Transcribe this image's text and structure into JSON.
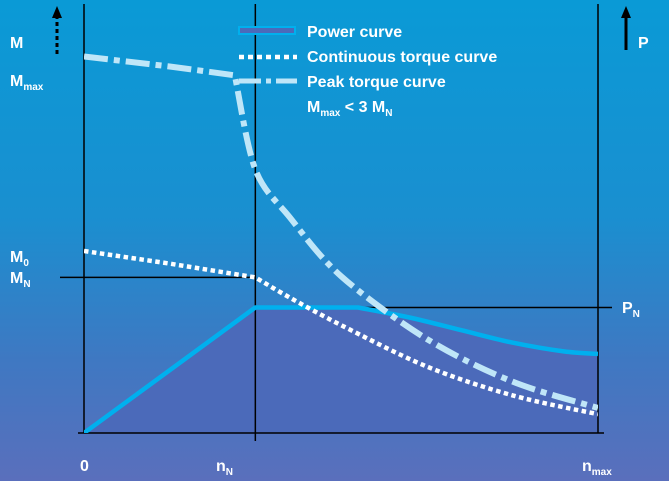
{
  "chart_data": {
    "type": "line",
    "x_ticks": {
      "zero": "0",
      "n_N": {
        "base": "n",
        "sub": "N"
      },
      "n_max": {
        "base": "n",
        "sub": "max"
      }
    },
    "y_left": {
      "axis_label": "M",
      "ticks": {
        "M_max": {
          "base": "M",
          "sub": "max"
        },
        "M_0": {
          "base": "M",
          "sub": "0"
        },
        "M_N": {
          "base": "M",
          "sub": "N"
        }
      }
    },
    "y_right": {
      "axis_label": "P",
      "ticks": {
        "P_N": {
          "base": "P",
          "sub": "N"
        }
      }
    },
    "legend": {
      "placement": "top-center",
      "entries": [
        "Power curve",
        "Continuous torque curve",
        "Peak torque curve"
      ],
      "note": {
        "base1": "M",
        "sub1": "max",
        "mid": " < 3 M",
        "sub2": "N"
      }
    },
    "x_range": [
      0,
      3.0
    ],
    "y_range": [
      0,
      3.45
    ],
    "series": [
      {
        "name": "Power curve",
        "style": "filled",
        "points": [
          [
            0,
            0
          ],
          [
            1.0,
            1.0
          ],
          [
            1.2,
            1.0
          ],
          [
            1.6,
            1.0
          ],
          [
            1.9,
            0.92
          ],
          [
            2.2,
            0.82
          ],
          [
            2.5,
            0.72
          ],
          [
            2.8,
            0.65
          ],
          [
            3.0,
            0.63
          ]
        ]
      },
      {
        "name": "Continuous torque curve",
        "style": "dotted",
        "points": [
          [
            0,
            1.45
          ],
          [
            0.5,
            1.35
          ],
          [
            1.0,
            1.24
          ],
          [
            1.2,
            1.08
          ],
          [
            1.5,
            0.86
          ],
          [
            2.0,
            0.53
          ],
          [
            2.5,
            0.3
          ],
          [
            3.0,
            0.15
          ]
        ]
      },
      {
        "name": "Peak torque curve",
        "style": "dash-dot",
        "points": [
          [
            0,
            3.0
          ],
          [
            0.5,
            2.92
          ],
          [
            0.88,
            2.85
          ],
          [
            1.0,
            2.1
          ],
          [
            1.2,
            1.72
          ],
          [
            1.5,
            1.25
          ],
          [
            2.0,
            0.75
          ],
          [
            2.5,
            0.41
          ],
          [
            3.0,
            0.2
          ]
        ]
      }
    ],
    "reference_lines": {
      "n_N": 1.0,
      "M_N": 1.24,
      "P_N": 1.0
    },
    "colors": {
      "power": "#00b0ee",
      "power_fill": "#4b6aba",
      "continuous": "#ffffff",
      "peak": "#bfe6f8",
      "axes": "#000000",
      "text": "#ffffff"
    }
  }
}
